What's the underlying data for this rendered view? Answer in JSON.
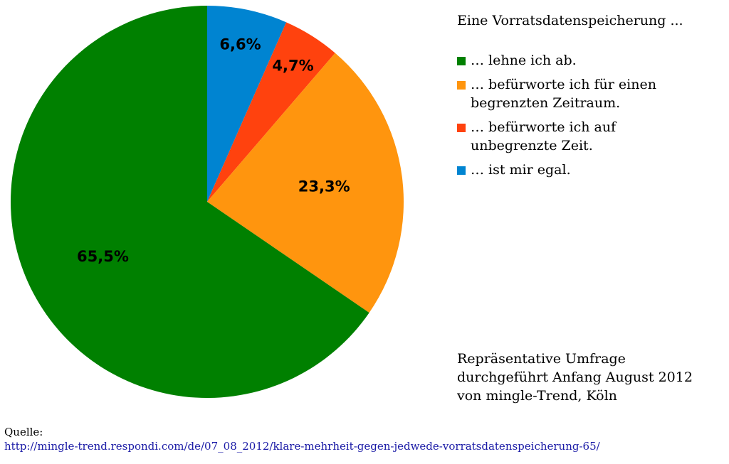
{
  "chart_data": {
    "type": "pie",
    "title": "Eine Vorratsdatenspeicherung ...",
    "slices": [
      {
        "label": "… lehne ich ab.",
        "value": 65.5,
        "value_label": "65,5%",
        "color": "#008000"
      },
      {
        "label": "… befürworte ich für einen begrenzten Zeitraum.",
        "value": 23.3,
        "value_label": "23,3%",
        "color": "#ff950e"
      },
      {
        "label": "… befürworte ich auf unbegrenzte Zeit.",
        "value": 4.7,
        "value_label": "4,7%",
        "color": "#ff420e"
      },
      {
        "label": "… ist mir egal.",
        "value": 6.6,
        "value_label": "6,6%",
        "color": "#0084d1"
      }
    ],
    "legend_position": "right"
  },
  "legend": {
    "title": "Eine Vorratsdatenspeicherung ...",
    "items": [
      {
        "line1": "… lehne ich ab.",
        "line2": "",
        "color": "#008000"
      },
      {
        "line1": "… befürworte ich für einen",
        "line2": "begrenzten Zeitraum.",
        "color": "#ff950e"
      },
      {
        "line1": "… befürworte ich auf",
        "line2": "unbegrenzte Zeit.",
        "color": "#ff420e"
      },
      {
        "line1": "… ist mir egal.",
        "line2": "",
        "color": "#0084d1"
      }
    ]
  },
  "footnote": {
    "line1": "Repräsentative Umfrage",
    "line2": "durchgeführt Anfang August 2012",
    "line3": "von mingle-Trend, Köln"
  },
  "source": {
    "label": "Quelle:",
    "url": "http://mingle-trend.respondi.com/de/07_08_2012/klare-mehrheit-gegen-jedwede-vorratsdatenspeicherung-65/"
  }
}
